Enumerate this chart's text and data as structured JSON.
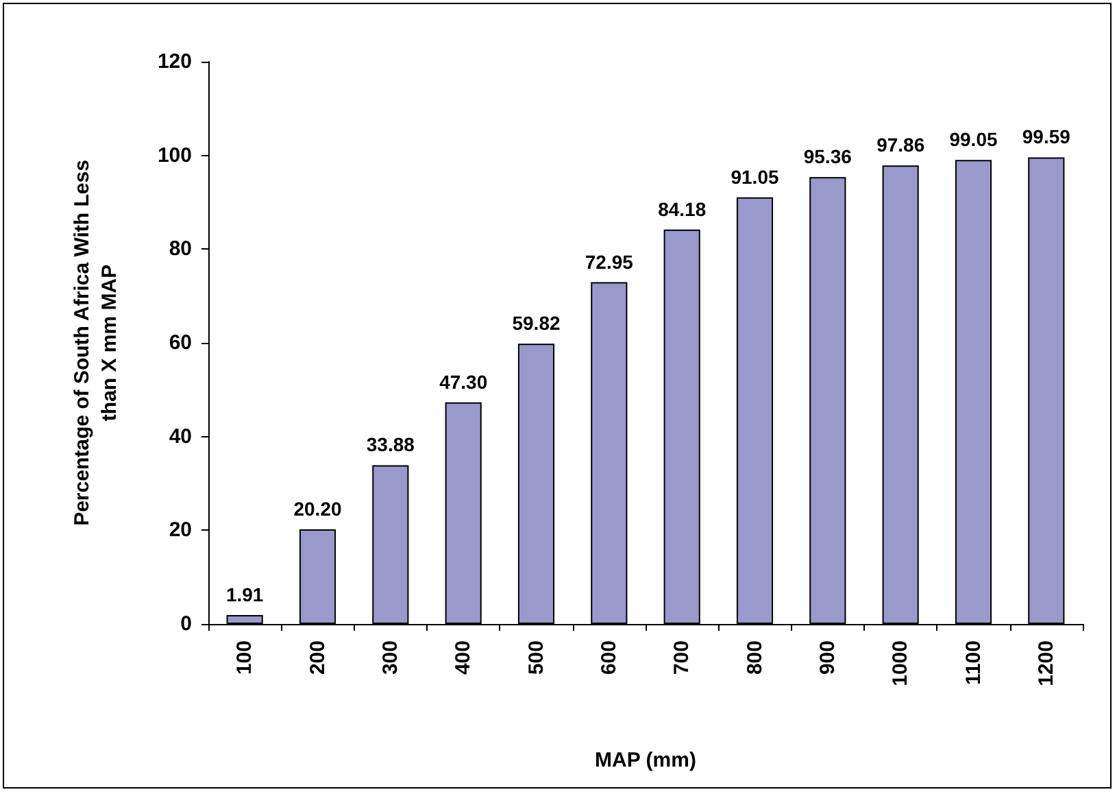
{
  "chart_data": {
    "type": "bar",
    "xlabel": "MAP (mm)",
    "ylabel": "Percentage of South Africa With Less than X mm MAP",
    "categories": [
      "100",
      "200",
      "300",
      "400",
      "500",
      "600",
      "700",
      "800",
      "900",
      "1000",
      "1100",
      "1200"
    ],
    "series": [
      {
        "color": "#9999cc",
        "values": [
          1.91,
          20.2,
          33.88,
          47.3,
          59.82,
          72.95,
          84.18,
          91.05,
          95.36,
          97.86,
          99.05,
          99.59
        ],
        "value_labels": [
          "1.91",
          "20.20",
          "33.88",
          "47.30",
          "59.82",
          "72.95",
          "84.18",
          "91.05",
          "95.36",
          "97.86",
          "99.05",
          "99.59"
        ]
      }
    ],
    "ylim": [
      0,
      120
    ],
    "yticks": [
      0,
      20,
      40,
      60,
      80,
      100,
      120
    ],
    "grid": false
  }
}
